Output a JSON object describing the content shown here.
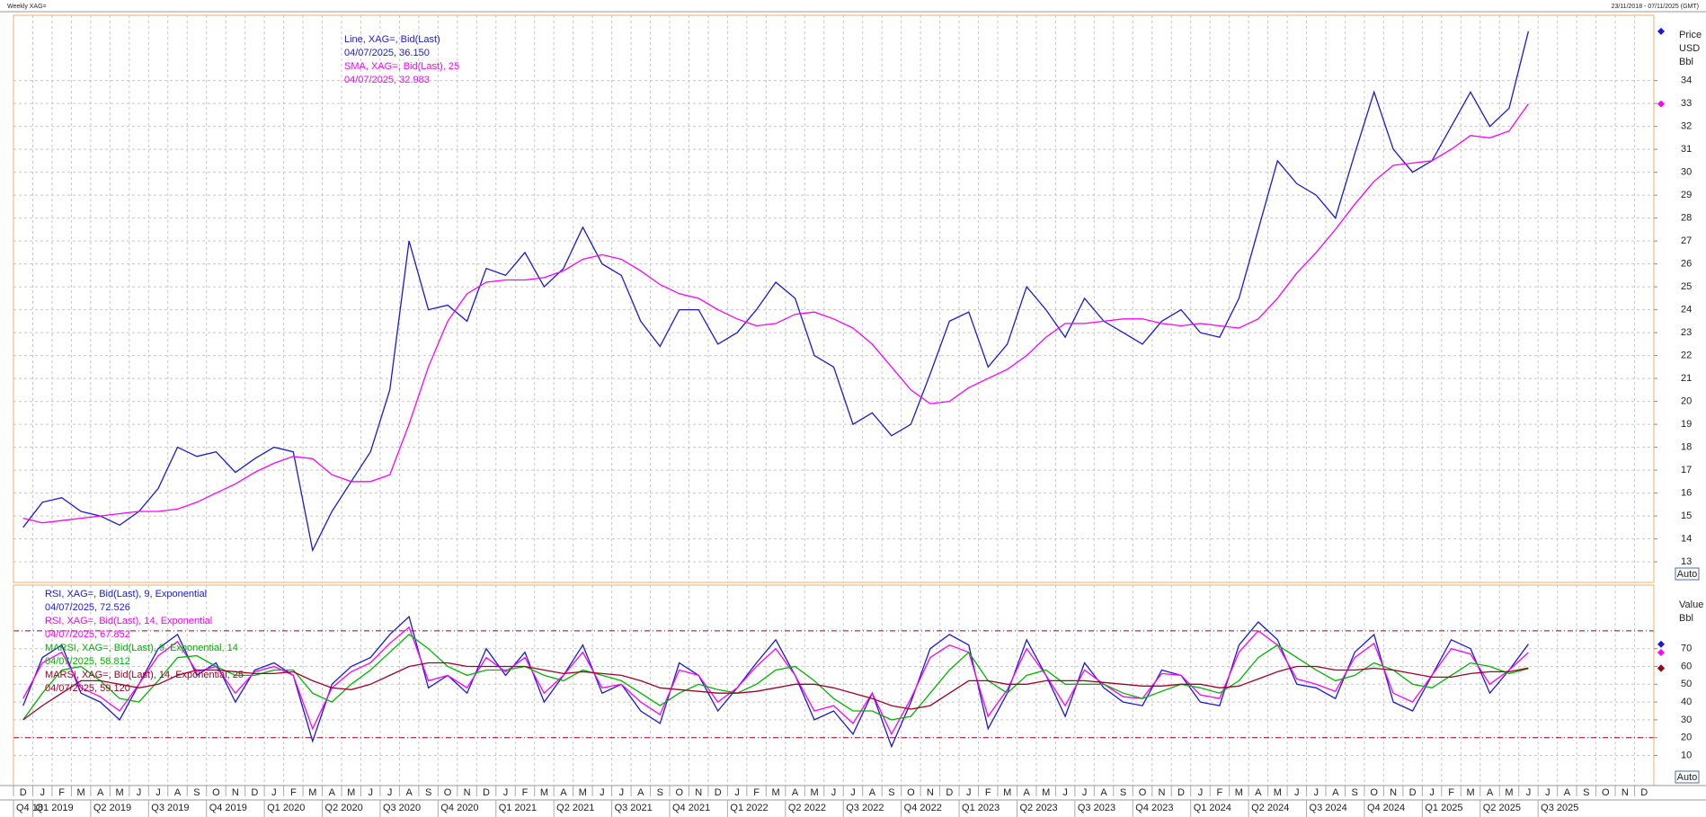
{
  "header": {
    "title": "Weekly XAG=",
    "range": "23/11/2018 - 07/11/2025 (GMT)"
  },
  "chart_data": [
    {
      "type": "line",
      "grid": true,
      "ylim": [
        12.1,
        36.85
      ],
      "yticks": [
        13,
        14,
        15,
        16,
        17,
        18,
        19,
        20,
        21,
        22,
        23,
        24,
        25,
        26,
        27,
        28,
        29,
        30,
        31,
        32,
        33,
        34
      ],
      "axis_labels": [
        "Price",
        "USD",
        "Bbl"
      ],
      "scale_button": "Auto",
      "series": [
        {
          "name": "Line, XAG=, Bid(Last)",
          "last_label": "04/07/2025, 36.150",
          "color": "#1a1ad6",
          "values": [
            14.5,
            15.6,
            15.8,
            15.2,
            15.0,
            14.6,
            15.2,
            16.2,
            18.0,
            17.6,
            17.8,
            16.9,
            17.5,
            18.0,
            17.8,
            13.5,
            15.2,
            16.5,
            17.8,
            20.5,
            27.0,
            24.0,
            24.2,
            23.5,
            25.8,
            25.5,
            26.5,
            25.0,
            25.8,
            27.6,
            26.0,
            25.5,
            23.5,
            22.4,
            24.0,
            24.0,
            22.5,
            23.0,
            24.0,
            25.2,
            24.5,
            22.0,
            21.5,
            19.0,
            19.5,
            18.5,
            19.0,
            21.2,
            23.5,
            23.9,
            21.5,
            22.5,
            25.0,
            24.0,
            22.8,
            24.5,
            23.5,
            23.0,
            22.5,
            23.5,
            24.0,
            23.0,
            22.8,
            24.5,
            27.5,
            30.5,
            29.5,
            29.0,
            28.0,
            30.8,
            33.5,
            31.0,
            30.0,
            30.5,
            32.0,
            33.5,
            32.0,
            32.8,
            36.15,
            null,
            null,
            null,
            null,
            null,
            null
          ]
        },
        {
          "name": "SMA, XAG=, Bid(Last),  25",
          "last_label": "04/07/2025, 32.983",
          "color": "#ff00ff",
          "values": [
            14.9,
            14.7,
            14.8,
            14.9,
            15.0,
            15.1,
            15.2,
            15.2,
            15.3,
            15.6,
            16.0,
            16.4,
            16.9,
            17.3,
            17.6,
            17.5,
            16.8,
            16.5,
            16.5,
            16.8,
            19.0,
            21.5,
            23.5,
            24.7,
            25.2,
            25.3,
            25.3,
            25.4,
            25.7,
            26.2,
            26.4,
            26.2,
            25.7,
            25.1,
            24.7,
            24.5,
            24.0,
            23.6,
            23.3,
            23.4,
            23.8,
            23.9,
            23.6,
            23.2,
            22.5,
            21.5,
            20.5,
            19.9,
            20.0,
            20.6,
            21.0,
            21.4,
            22.0,
            22.8,
            23.4,
            23.4,
            23.5,
            23.6,
            23.6,
            23.4,
            23.3,
            23.4,
            23.3,
            23.2,
            23.6,
            24.5,
            25.6,
            26.5,
            27.5,
            28.6,
            29.6,
            30.3,
            30.4,
            30.5,
            31.0,
            31.6,
            31.5,
            31.8,
            32.983,
            null,
            null,
            null,
            null,
            null,
            null
          ]
        }
      ]
    },
    {
      "type": "line",
      "grid": true,
      "ylim": [
        -6.9,
        105.7
      ],
      "yticks": [
        10,
        20,
        30,
        40,
        50,
        60,
        70
      ],
      "ref_lines": [
        20,
        80
      ],
      "axis_labels": [
        "Value",
        "Bbl"
      ],
      "scale_button": "Auto",
      "categories": [
        "D",
        "J",
        "F",
        "M",
        "A",
        "M",
        "J",
        "J",
        "A",
        "S",
        "O",
        "N",
        "D",
        "J",
        "F",
        "M",
        "A",
        "M",
        "J",
        "J",
        "A",
        "S",
        "O",
        "N",
        "D",
        "J",
        "F",
        "M",
        "A",
        "M",
        "J",
        "J",
        "A",
        "S",
        "O",
        "N",
        "D",
        "J",
        "F",
        "M",
        "A",
        "M",
        "J",
        "J",
        "A",
        "S",
        "O",
        "N",
        "D",
        "J",
        "F",
        "M",
        "A",
        "M",
        "J",
        "J",
        "A",
        "S",
        "O",
        "N",
        "D",
        "J",
        "F",
        "M",
        "A",
        "M",
        "J",
        "J",
        "A",
        "S",
        "O",
        "N",
        "D",
        "J",
        "F",
        "M",
        "A",
        "M",
        "J",
        "J",
        "A",
        "S",
        "O",
        "N",
        "D"
      ],
      "quarters": [
        "Q4 18",
        "Q1 2019",
        "Q2 2019",
        "Q3 2019",
        "Q4 2019",
        "Q1 2020",
        "Q2 2020",
        "Q3 2020",
        "Q4 2020",
        "Q1 2021",
        "Q2 2021",
        "Q3 2021",
        "Q4 2021",
        "Q1 2022",
        "Q2 2022",
        "Q3 2022",
        "Q4 2022",
        "Q1 2023",
        "Q2 2023",
        "Q3 2023",
        "Q4 2023",
        "Q1 2024",
        "Q2 2024",
        "Q3 2024",
        "Q4 2024",
        "Q1 2025",
        "Q2 2025",
        "Q3 2025"
      ],
      "series": [
        {
          "name": "RSI, XAG=, Bid(Last),  9, Exponential",
          "last_label": "04/07/2025, 72.526",
          "color": "#1a1ad6",
          "values": [
            38,
            65,
            72,
            45,
            40,
            30,
            50,
            70,
            78,
            55,
            62,
            40,
            58,
            62,
            55,
            18,
            50,
            60,
            65,
            78,
            88,
            48,
            55,
            45,
            70,
            55,
            68,
            40,
            55,
            72,
            45,
            50,
            35,
            28,
            62,
            55,
            35,
            48,
            62,
            75,
            55,
            30,
            35,
            22,
            45,
            15,
            40,
            70,
            78,
            72,
            25,
            45,
            75,
            55,
            32,
            62,
            48,
            40,
            38,
            58,
            55,
            40,
            38,
            72,
            85,
            75,
            50,
            48,
            42,
            68,
            78,
            40,
            35,
            55,
            75,
            70,
            45,
            58,
            72.526,
            null,
            null,
            null,
            null,
            null,
            null
          ]
        },
        {
          "name": "RSI, XAG=, Bid(Last),  14, Exponential",
          "last_label": "04/07/2025, 67.852",
          "color": "#ff00ff",
          "values": [
            42,
            62,
            68,
            48,
            43,
            35,
            50,
            66,
            74,
            57,
            60,
            45,
            57,
            60,
            55,
            25,
            48,
            57,
            62,
            73,
            82,
            52,
            55,
            48,
            65,
            57,
            65,
            45,
            55,
            68,
            48,
            50,
            40,
            33,
            58,
            55,
            40,
            48,
            60,
            70,
            55,
            35,
            38,
            28,
            45,
            22,
            42,
            65,
            72,
            68,
            32,
            47,
            70,
            55,
            38,
            58,
            50,
            43,
            42,
            56,
            55,
            44,
            42,
            68,
            80,
            72,
            53,
            50,
            46,
            65,
            73,
            45,
            40,
            55,
            70,
            67,
            50,
            58,
            67.852,
            null,
            null,
            null,
            null,
            null,
            null
          ]
        },
        {
          "name": "MARSI, XAG=, Bid(Last),  9, Exponential, 14",
          "last_label": "04/07/2025, 58.812",
          "color": "#00b400",
          "values": [
            30,
            45,
            58,
            60,
            52,
            42,
            40,
            52,
            65,
            66,
            60,
            55,
            55,
            58,
            58,
            45,
            40,
            50,
            58,
            68,
            78,
            70,
            60,
            55,
            58,
            58,
            60,
            55,
            52,
            58,
            55,
            52,
            45,
            38,
            45,
            50,
            47,
            45,
            50,
            58,
            60,
            52,
            42,
            35,
            35,
            30,
            32,
            45,
            58,
            68,
            52,
            45,
            55,
            58,
            50,
            50,
            50,
            45,
            42,
            46,
            50,
            48,
            45,
            52,
            65,
            72,
            65,
            58,
            52,
            55,
            62,
            58,
            50,
            48,
            55,
            62,
            60,
            56,
            58.812,
            null,
            null,
            null,
            null,
            null,
            null
          ]
        },
        {
          "name": "MARSI, XAG=, Bid(Last),  14, Exponential, 25",
          "last_label": "04/07/2025, 59.120",
          "color": "#a00028",
          "values": [
            30,
            38,
            45,
            52,
            52,
            50,
            48,
            50,
            55,
            58,
            58,
            57,
            56,
            56,
            57,
            52,
            48,
            47,
            50,
            55,
            60,
            62,
            62,
            60,
            60,
            60,
            60,
            58,
            56,
            57,
            56,
            55,
            52,
            48,
            47,
            46,
            45,
            45,
            46,
            48,
            50,
            50,
            48,
            45,
            42,
            38,
            36,
            38,
            45,
            52,
            52,
            50,
            50,
            52,
            52,
            52,
            51,
            50,
            49,
            49,
            50,
            50,
            48,
            49,
            53,
            57,
            60,
            60,
            58,
            58,
            59,
            58,
            56,
            54,
            54,
            56,
            57,
            57,
            59.12,
            null,
            null,
            null,
            null,
            null,
            null
          ]
        }
      ]
    }
  ]
}
